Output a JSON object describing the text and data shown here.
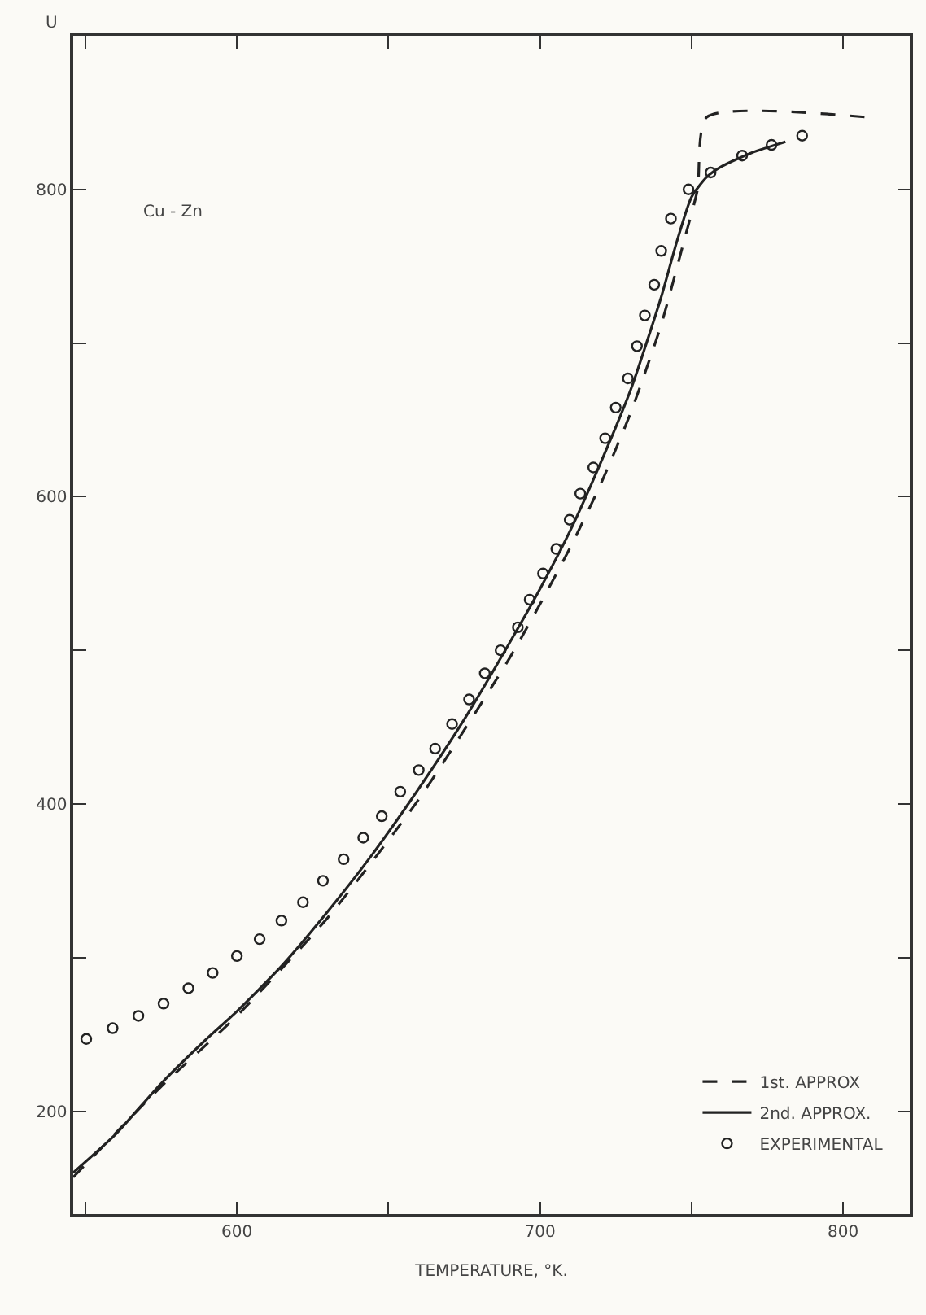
{
  "chart_data": {
    "type": "line",
    "xlabel": "TEMPERATURE, °K.",
    "ylabel": "U",
    "annotations": [
      "Cu - Zn"
    ],
    "xlim": [
      546,
      822
    ],
    "ylim": [
      133,
      900
    ],
    "xticks": [
      {
        "value": 550,
        "label": null
      },
      600,
      {
        "value": 650,
        "label": null
      },
      700,
      {
        "value": 750,
        "label": null
      },
      800
    ],
    "yticks": [
      200,
      {
        "value": 300,
        "label": null
      },
      400,
      {
        "value": 500,
        "label": null
      },
      600,
      {
        "value": 700,
        "label": null
      },
      800
    ],
    "grid": false,
    "legend": "bottom right",
    "series": [
      {
        "name": "1st. APPROX",
        "color": "#222222",
        "line_style": "dashed",
        "marker": "none",
        "x": [
          546,
          575,
          600,
          630,
          660,
          690,
          700,
          710,
          720,
          730,
          740,
          748,
          752,
          755,
          808
        ],
        "values": [
          157,
          216,
          262,
          326,
          403,
          495,
          530,
          567,
          608,
          655,
          712,
          770,
          800,
          847,
          847
        ]
      },
      {
        "name": "2nd. APPROX.",
        "color": "#222222",
        "line_style": "solid",
        "marker": "none",
        "x": [
          546,
          560,
          575,
          590,
          600,
          615,
          630,
          645,
          660,
          675,
          690,
          700,
          710,
          720,
          730,
          740,
          745,
          750,
          755,
          760,
          770,
          781
        ],
        "values": [
          160,
          185,
          218,
          247,
          265,
          295,
          330,
          368,
          410,
          455,
          505,
          540,
          578,
          622,
          670,
          730,
          765,
          795,
          808,
          815,
          824,
          831
        ]
      },
      {
        "name": "EXPERIMENTAL",
        "color": "#222222",
        "type": "scatter",
        "marker": "circle",
        "x": [
          550.3,
          559,
          567.5,
          575.8,
          584,
          592,
          600,
          607.5,
          614.7,
          621.8,
          628.4,
          635.2,
          641.7,
          647.8,
          653.9,
          660,
          665.4,
          671,
          676.6,
          681.8,
          687,
          692.7,
          696.6,
          701,
          705.4,
          709.8,
          713.3,
          717.6,
          721.5,
          725,
          729,
          732,
          734.6,
          737.7,
          740,
          743.2,
          749,
          756.3,
          766.7,
          776.4,
          786.5
        ],
        "values": [
          247,
          254,
          262,
          270,
          280,
          290,
          301,
          312,
          324,
          336,
          350,
          364,
          378,
          392,
          408,
          422,
          436,
          452,
          468,
          485,
          500,
          515,
          533,
          550,
          566,
          585,
          602,
          619,
          638,
          658,
          677,
          698,
          718,
          738,
          760,
          781,
          800,
          811,
          822,
          829,
          835
        ]
      }
    ]
  }
}
